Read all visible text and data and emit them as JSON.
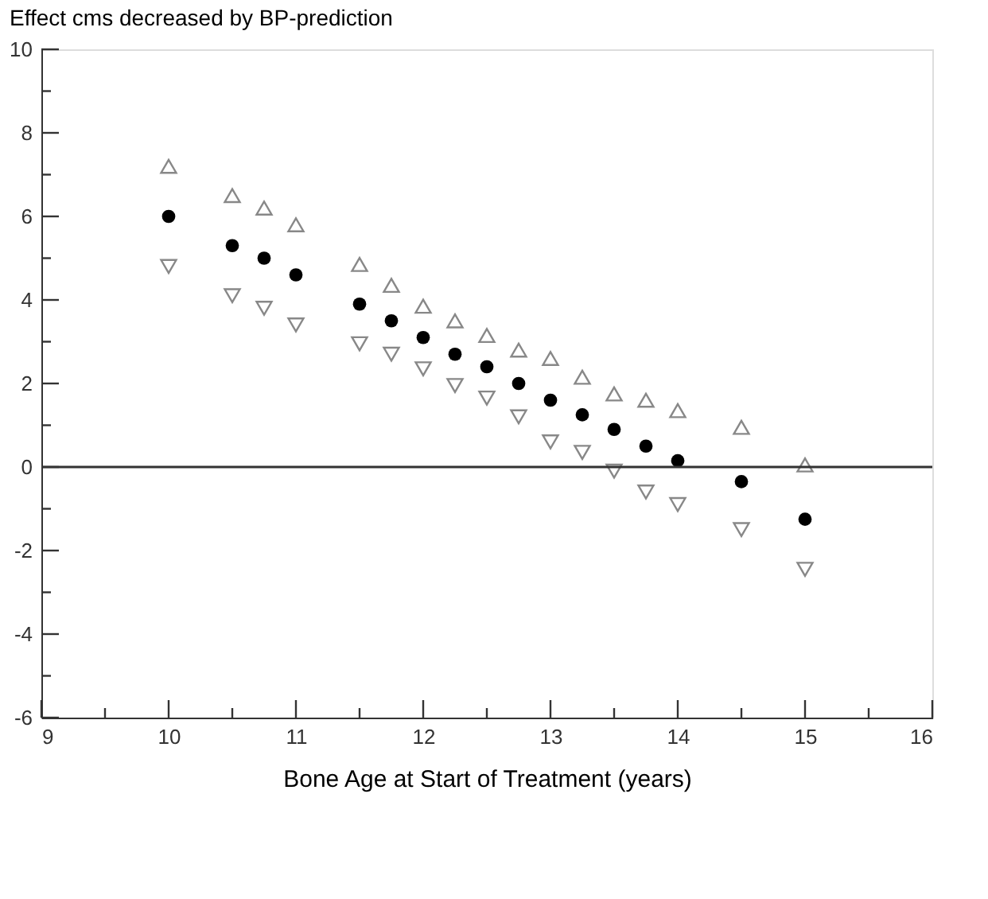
{
  "chart_data": {
    "type": "scatter",
    "title": "Effect cms decreased by BP-prediction",
    "xlabel": "Bone Age at Start of Treatment (years)",
    "xlim": [
      9,
      16
    ],
    "xticks": [
      9,
      {
        "value": 9.5,
        "label": null
      },
      10,
      {
        "value": 10.5,
        "label": null
      },
      11,
      {
        "value": 11.5,
        "label": null
      },
      12,
      {
        "value": 12.5,
        "label": null
      },
      13,
      {
        "value": 13.5,
        "label": null
      },
      14,
      {
        "value": 14.5,
        "label": null
      },
      15,
      {
        "value": 15.5,
        "label": null
      },
      16
    ],
    "ylim": [
      -6,
      10
    ],
    "yticks": [
      -6,
      {
        "value": -5,
        "label": null
      },
      -4,
      {
        "value": -3,
        "label": null
      },
      -2,
      {
        "value": -1,
        "label": null
      },
      0,
      {
        "value": 1,
        "label": null
      },
      2,
      {
        "value": 3,
        "label": null
      },
      4,
      {
        "value": 5,
        "label": null
      },
      6,
      {
        "value": 7,
        "label": null
      },
      8,
      {
        "value": 9,
        "label": null
      },
      10
    ],
    "grid": false,
    "ref_lines": [
      {
        "axis": "y",
        "value": 0,
        "color": "#333333"
      }
    ],
    "series": [
      {
        "color": "#000000",
        "marker": "circle",
        "x": [
          10,
          10.5,
          10.75,
          11,
          11.5,
          11.75,
          12,
          12.25,
          12.5,
          12.75,
          13,
          13.25,
          13.5,
          13.75,
          14,
          14.5,
          15
        ],
        "values": [
          6.0,
          5.3,
          5.0,
          4.6,
          3.9,
          3.5,
          3.1,
          2.7,
          2.4,
          2.0,
          1.6,
          1.25,
          0.9,
          0.5,
          0.15,
          -0.35,
          -1.25
        ]
      },
      {
        "color": "#888888",
        "marker": "triangle",
        "x": [
          10,
          10.5,
          10.75,
          11,
          11.5,
          11.75,
          12,
          12.25,
          12.5,
          12.75,
          13,
          13.25,
          13.5,
          13.75,
          14,
          14.5,
          15
        ],
        "values": [
          7.2,
          6.5,
          6.2,
          5.8,
          4.85,
          4.35,
          3.85,
          3.5,
          3.15,
          2.8,
          2.6,
          2.15,
          1.75,
          1.6,
          1.35,
          0.95,
          0.05
        ]
      },
      {
        "color": "#888888",
        "marker": "triangle-down",
        "x": [
          10,
          10.5,
          10.75,
          11,
          11.5,
          11.75,
          12,
          12.25,
          12.5,
          12.75,
          13,
          13.25,
          13.5,
          13.75,
          14,
          14.5,
          15
        ],
        "values": [
          4.8,
          4.1,
          3.8,
          3.4,
          2.95,
          2.7,
          2.35,
          1.95,
          1.65,
          1.2,
          0.6,
          0.35,
          -0.1,
          -0.6,
          -0.9,
          -1.5,
          -2.45
        ]
      }
    ]
  }
}
